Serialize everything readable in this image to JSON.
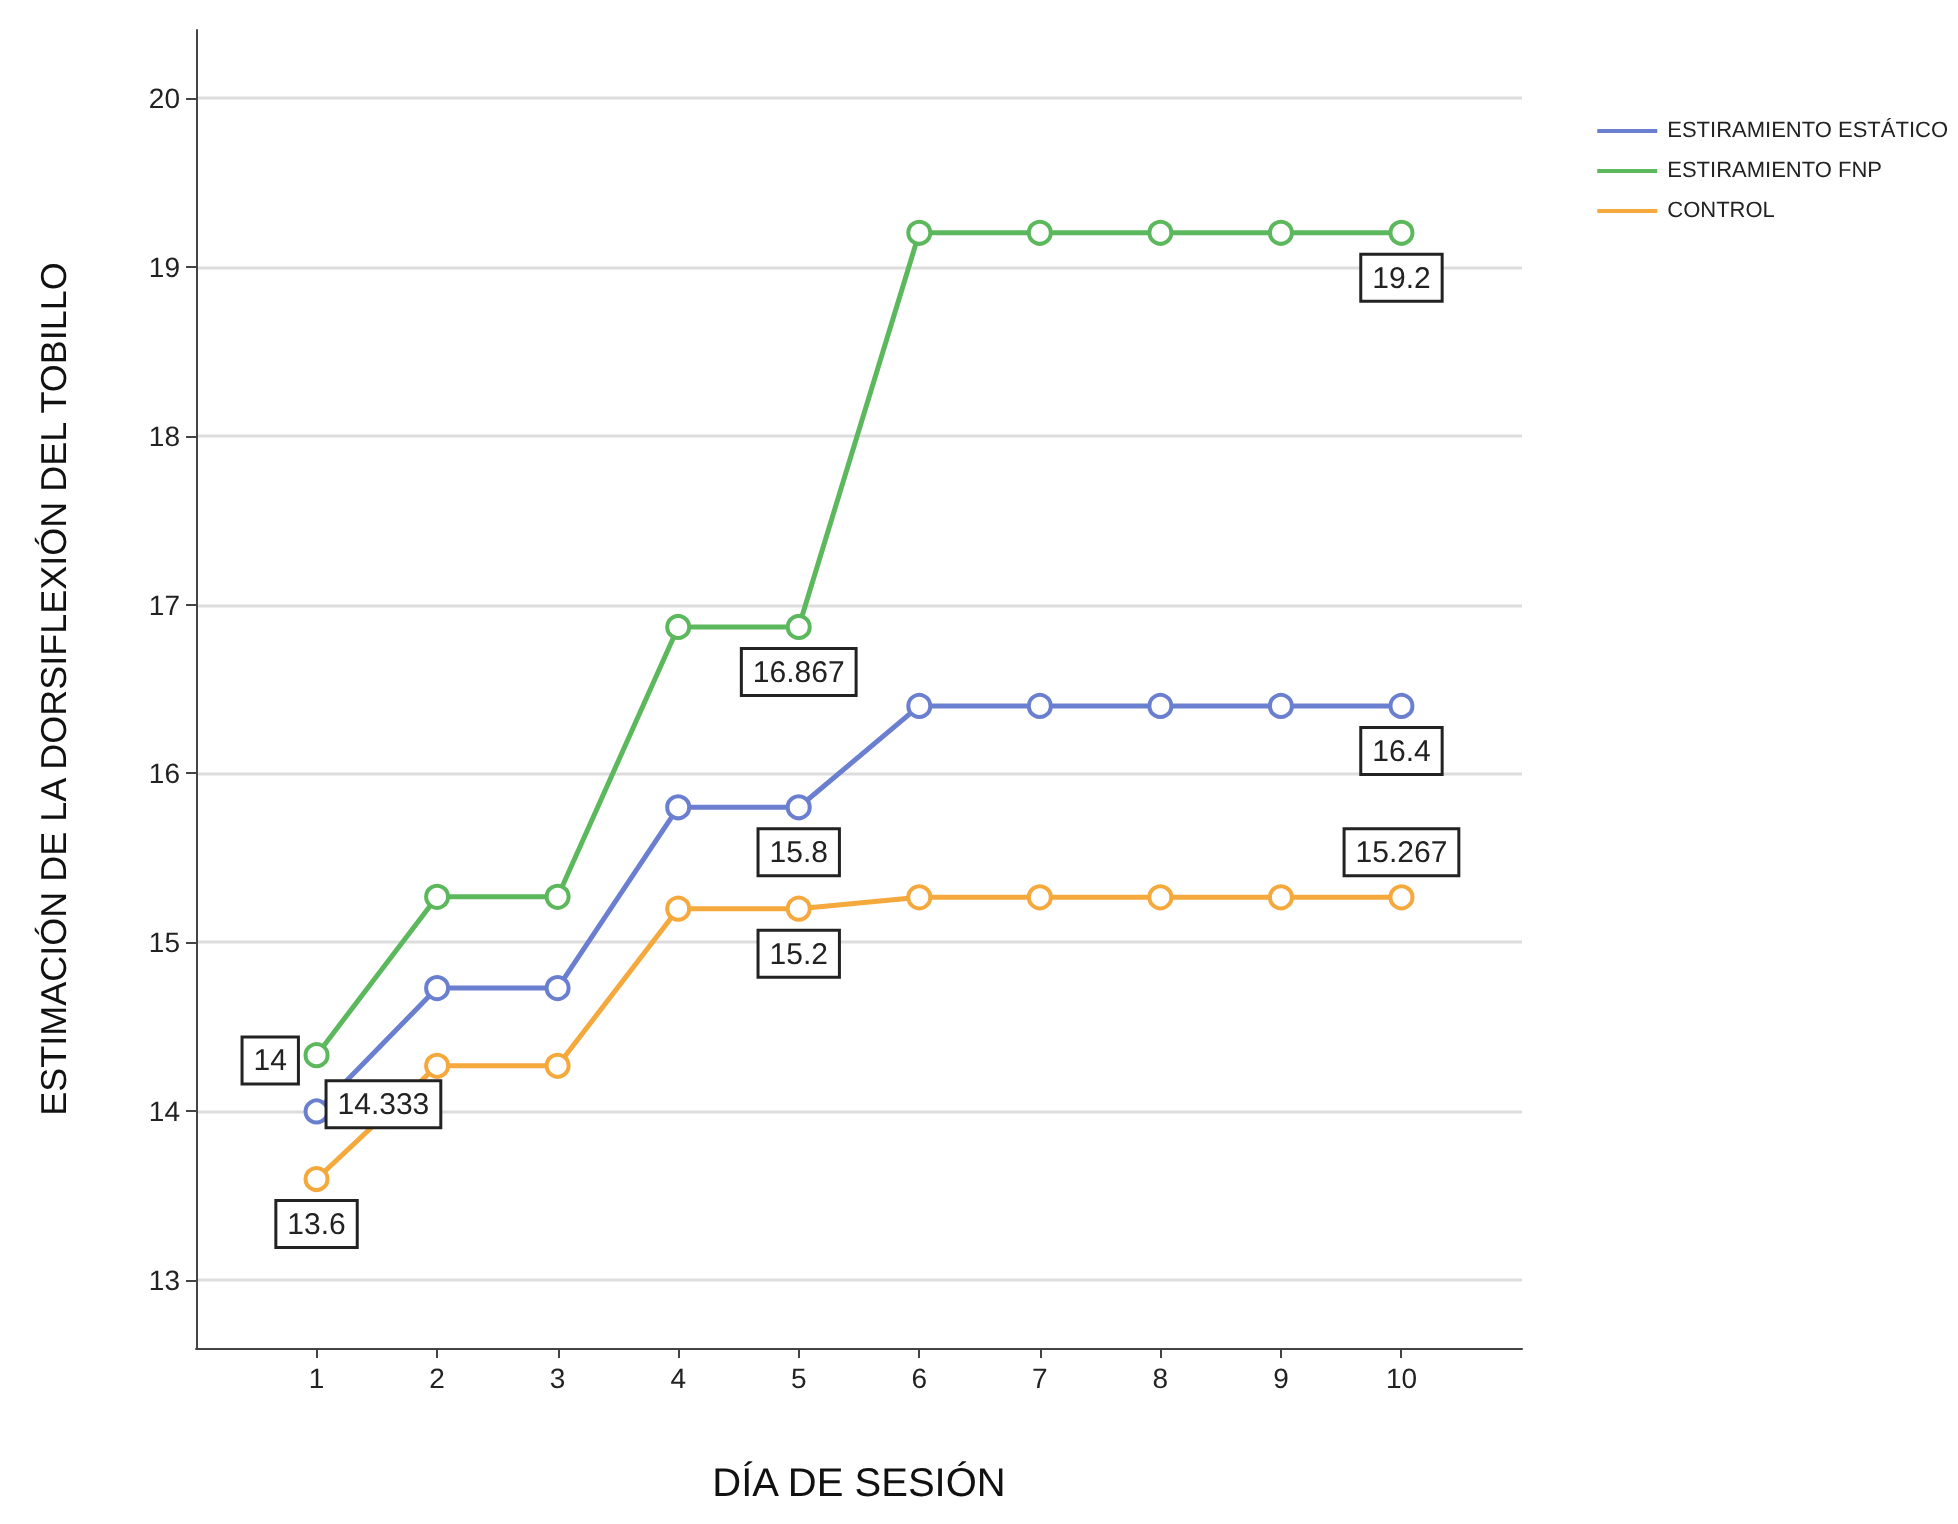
{
  "chart_data": {
    "type": "line",
    "xlabel": "DÍA DE SESIÓN",
    "ylabel": "ESTIMACIÓN DE LA DORSIFLEXIÓN DEL TOBILLO",
    "x": [
      1,
      2,
      3,
      4,
      5,
      6,
      7,
      8,
      9,
      10
    ],
    "series": [
      {
        "name": "ESTIRAMIENTO ESTÁTICO",
        "color": "#6b7fd0",
        "values": [
          14,
          14.73,
          14.73,
          15.8,
          15.8,
          16.4,
          16.4,
          16.4,
          16.4,
          16.4
        ],
        "value_labels": [
          "14",
          null,
          null,
          null,
          "15.8",
          null,
          null,
          null,
          null,
          "16.4"
        ]
      },
      {
        "name": "ESTIRAMIENTO FNP",
        "color": "#5cb85c",
        "values": [
          14.333,
          15.27,
          15.27,
          16.867,
          16.867,
          19.2,
          19.2,
          19.2,
          19.2,
          19.2
        ],
        "value_labels": [
          "14.333",
          null,
          null,
          null,
          "16.867",
          null,
          null,
          null,
          null,
          "19.2"
        ]
      },
      {
        "name": "CONTROL",
        "color": "#f5a83c",
        "values": [
          13.6,
          14.27,
          14.27,
          15.2,
          15.2,
          15.267,
          15.267,
          15.267,
          15.267,
          15.267
        ],
        "value_labels": [
          "13.6",
          null,
          null,
          null,
          "15.2",
          null,
          null,
          null,
          null,
          "15.267"
        ]
      }
    ],
    "xlim": [
      0,
      11
    ],
    "xticks": [
      1,
      2,
      3,
      4,
      5,
      6,
      7,
      8,
      9,
      10
    ],
    "ylim": [
      12.6,
      20.4
    ],
    "yticks": [
      13,
      14,
      15,
      16,
      17,
      18,
      19,
      20
    ],
    "grid": "y",
    "legend": "top right",
    "marker": "circle",
    "line_style": "solid"
  }
}
